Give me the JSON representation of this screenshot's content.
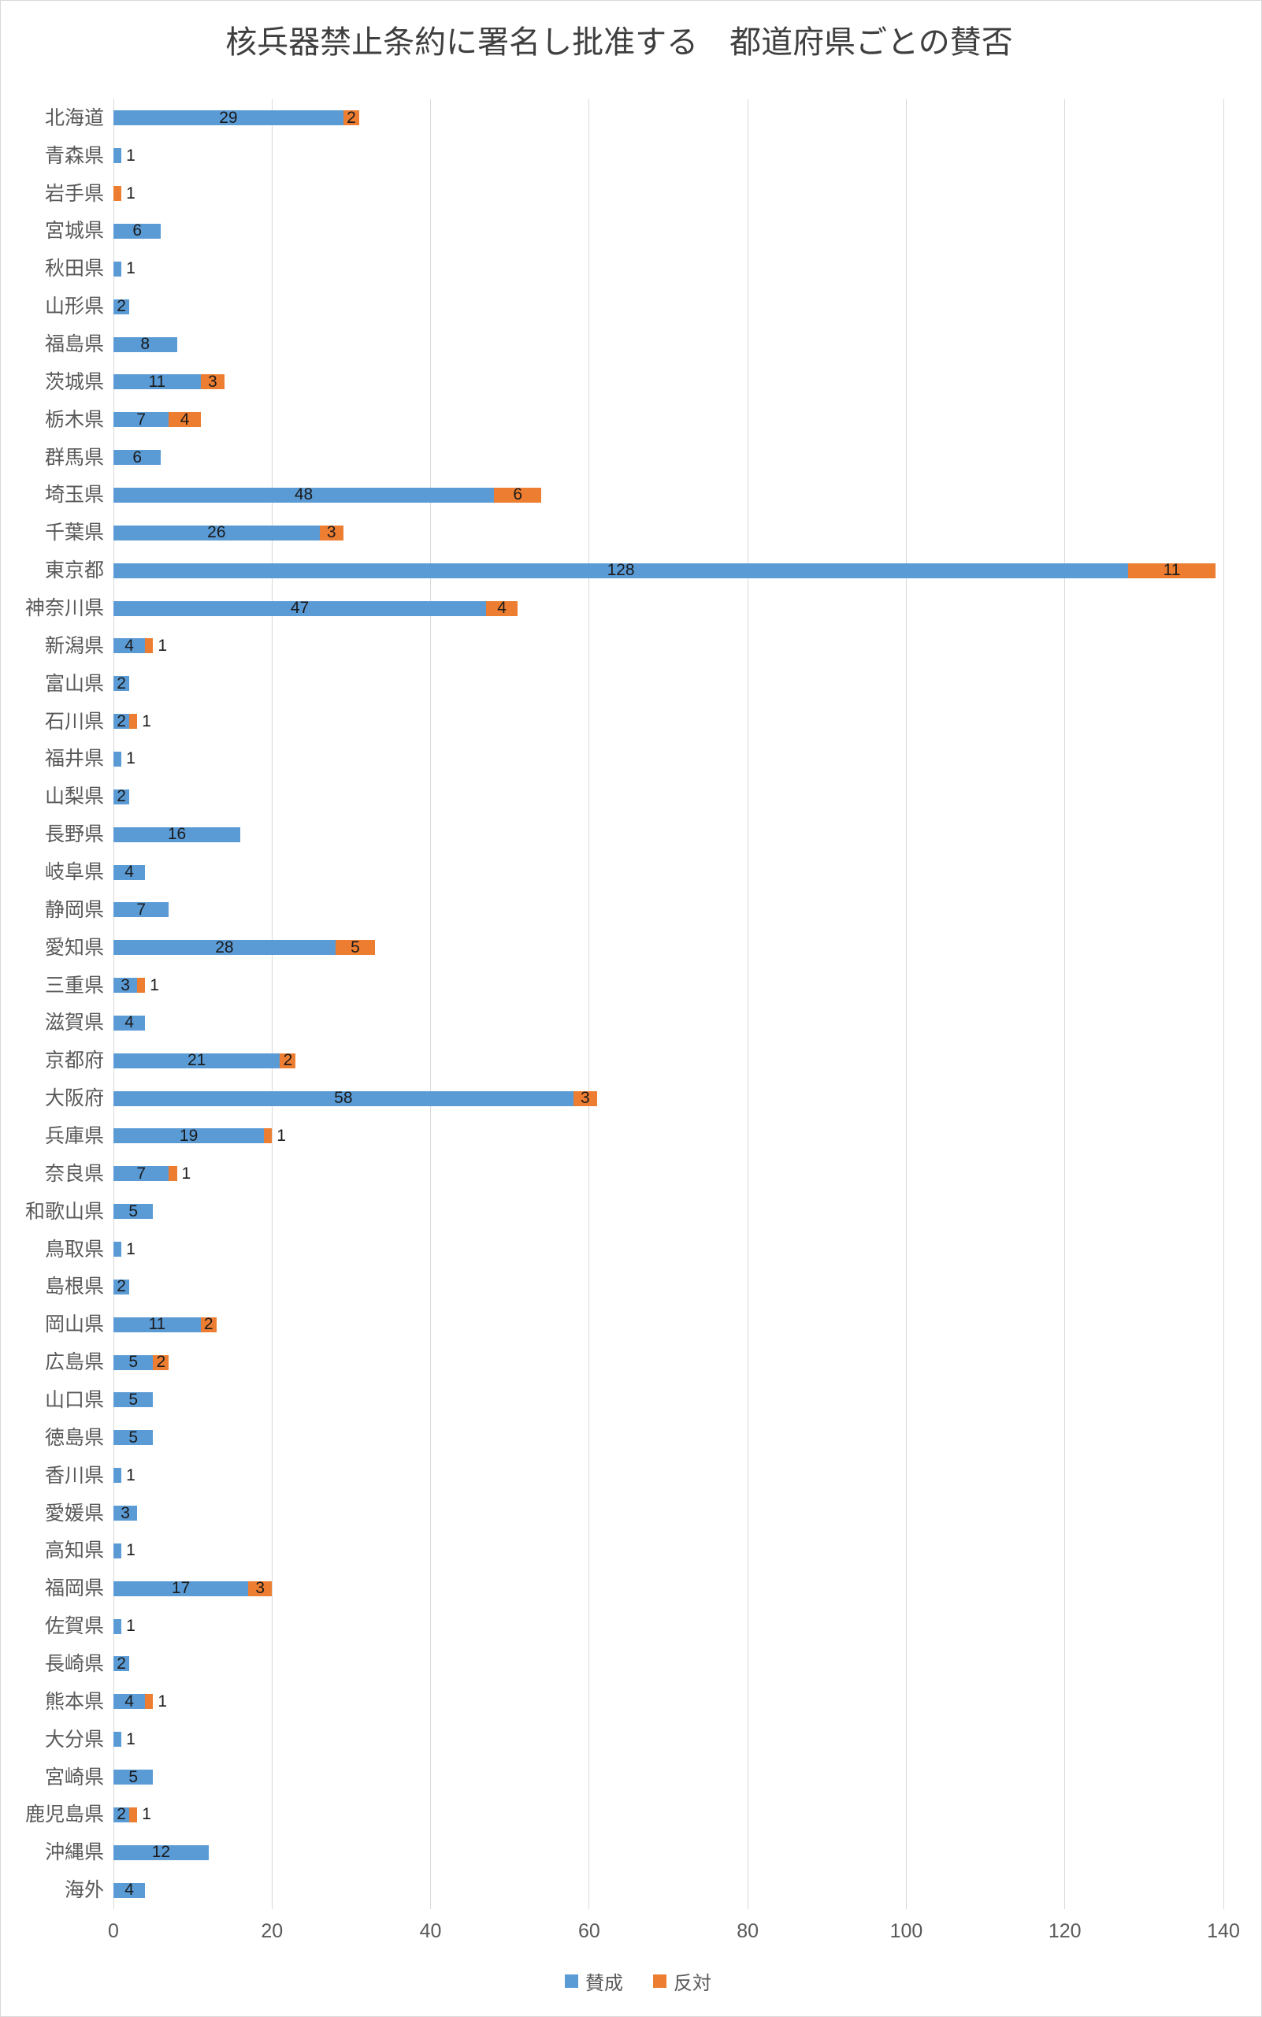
{
  "title": "核兵器禁止条約に署名し批准する　都道府県ごとの賛否",
  "colors": {
    "agree": "#5b9bd5",
    "oppose": "#ed7d31",
    "grid": "#d9d9d9",
    "category_text": "#595959",
    "value_text": "#1a1a1a",
    "title_text": "#3f3f3f"
  },
  "chart_data": {
    "type": "bar",
    "orientation": "horizontal",
    "stacked": true,
    "title": "核兵器禁止条約に署名し批准する　都道府県ごとの賛否",
    "xlabel": "",
    "ylabel": "",
    "xlim": [
      0,
      140
    ],
    "x_ticks": [
      0,
      20,
      40,
      60,
      80,
      100,
      120,
      140
    ],
    "grid": true,
    "legend_position": "bottom",
    "categories": [
      "北海道",
      "青森県",
      "岩手県",
      "宮城県",
      "秋田県",
      "山形県",
      "福島県",
      "茨城県",
      "栃木県",
      "群馬県",
      "埼玉県",
      "千葉県",
      "東京都",
      "神奈川県",
      "新潟県",
      "富山県",
      "石川県",
      "福井県",
      "山梨県",
      "長野県",
      "岐阜県",
      "静岡県",
      "愛知県",
      "三重県",
      "滋賀県",
      "京都府",
      "大阪府",
      "兵庫県",
      "奈良県",
      "和歌山県",
      "鳥取県",
      "島根県",
      "岡山県",
      "広島県",
      "山口県",
      "徳島県",
      "香川県",
      "愛媛県",
      "高知県",
      "福岡県",
      "佐賀県",
      "長崎県",
      "熊本県",
      "大分県",
      "宮崎県",
      "鹿児島県",
      "沖縄県",
      "海外"
    ],
    "series": [
      {
        "name": "賛成",
        "color": "#5b9bd5",
        "values": [
          29,
          1,
          0,
          6,
          1,
          2,
          8,
          11,
          7,
          6,
          48,
          26,
          128,
          47,
          4,
          2,
          2,
          1,
          2,
          16,
          4,
          7,
          28,
          3,
          4,
          21,
          58,
          19,
          7,
          5,
          1,
          2,
          11,
          5,
          5,
          5,
          1,
          3,
          1,
          17,
          1,
          2,
          4,
          1,
          5,
          2,
          12,
          4
        ]
      },
      {
        "name": "反対",
        "color": "#ed7d31",
        "values": [
          2,
          0,
          1,
          0,
          0,
          0,
          0,
          3,
          4,
          0,
          6,
          3,
          11,
          4,
          1,
          0,
          1,
          0,
          0,
          0,
          0,
          0,
          5,
          1,
          0,
          2,
          3,
          1,
          1,
          0,
          0,
          0,
          2,
          2,
          0,
          0,
          0,
          0,
          0,
          3,
          0,
          0,
          1,
          0,
          0,
          1,
          0,
          0
        ]
      }
    ]
  }
}
